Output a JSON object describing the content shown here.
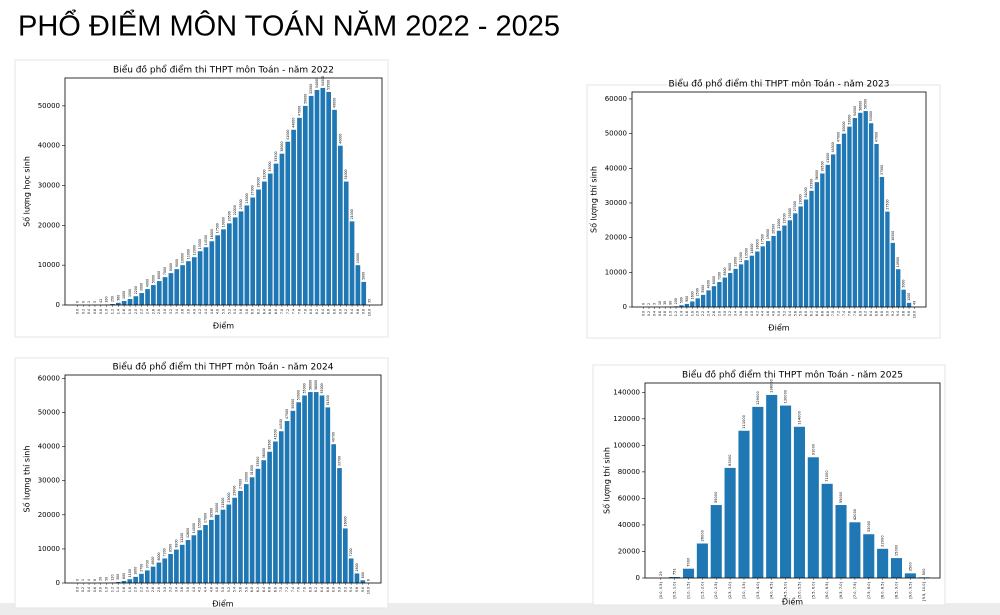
{
  "title": "PHỔ ĐIỂM MÔN TOÁN NĂM 2022 - 2025",
  "chart_data": [
    {
      "type": "bar",
      "title": "Biểu đồ phổ điểm thi THPT môn Toán - năm 2022",
      "xlabel": "Điểm",
      "ylabel": "Số lượng học sinh",
      "color": "#1f77b4",
      "categories": [
        "0.0",
        "0.2",
        "0.4",
        "0.6",
        "0.8",
        "1.0",
        "1.2",
        "1.4",
        "1.6",
        "1.8",
        "2.0",
        "2.2",
        "2.4",
        "2.6",
        "2.8",
        "3.0",
        "3.2",
        "3.4",
        "3.6",
        "3.8",
        "4.0",
        "4.2",
        "4.4",
        "4.6",
        "4.8",
        "5.0",
        "5.2",
        "5.4",
        "5.6",
        "5.8",
        "6.0",
        "6.2",
        "6.4",
        "6.6",
        "6.8",
        "7.0",
        "7.2",
        "7.4",
        "7.6",
        "7.8",
        "8.0",
        "8.2",
        "8.4",
        "8.6",
        "8.8",
        "9.0",
        "9.2",
        "9.4",
        "9.6",
        "9.8",
        "10.0"
      ],
      "values": [
        0,
        0,
        1,
        5,
        42,
        100,
        250,
        560,
        1000,
        1500,
        2200,
        3000,
        4000,
        5000,
        6000,
        7000,
        8000,
        9000,
        10000,
        11000,
        12000,
        13500,
        14500,
        16000,
        17500,
        19000,
        20500,
        22000,
        23500,
        25000,
        27000,
        29000,
        31000,
        33000,
        35500,
        38000,
        41000,
        44000,
        47000,
        50000,
        52500,
        54000,
        54500,
        53500,
        49000,
        40000,
        31000,
        21000,
        10000,
        5800,
        35
      ],
      "ylim": [
        0,
        57000
      ],
      "yticks": [
        0,
        10000,
        20000,
        30000,
        40000,
        50000
      ]
    },
    {
      "type": "bar",
      "title": "Biểu đồ phổ điểm thi THPT môn Toán - năm 2023",
      "xlabel": "Điểm",
      "ylabel": "Số lượng thí sinh",
      "color": "#1f77b4",
      "categories": [
        "0.0",
        "0.2",
        "0.4",
        "0.6",
        "0.8",
        "1.0",
        "1.2",
        "1.4",
        "1.6",
        "1.8",
        "2.0",
        "2.2",
        "2.4",
        "2.6",
        "2.8",
        "3.0",
        "3.2",
        "3.4",
        "3.6",
        "3.8",
        "4.0",
        "4.2",
        "4.4",
        "4.6",
        "4.8",
        "5.0",
        "5.2",
        "5.4",
        "5.6",
        "5.8",
        "6.0",
        "6.2",
        "6.4",
        "6.6",
        "6.8",
        "7.0",
        "7.2",
        "7.4",
        "7.6",
        "7.8",
        "8.0",
        "8.2",
        "8.4",
        "8.6",
        "8.8",
        "9.0",
        "9.2",
        "9.4",
        "9.6",
        "9.8",
        "10.0"
      ],
      "values": [
        0,
        2,
        3,
        10,
        30,
        80,
        200,
        500,
        900,
        1600,
        2500,
        3500,
        4800,
        6000,
        7200,
        8500,
        9800,
        11000,
        12300,
        13500,
        14800,
        16000,
        17500,
        19000,
        20500,
        22000,
        23500,
        25000,
        27000,
        29000,
        31000,
        33500,
        36000,
        38500,
        41000,
        44000,
        47000,
        50000,
        52000,
        54500,
        56000,
        56500,
        53000,
        47000,
        37500,
        27500,
        18500,
        10900,
        5000,
        1200,
        49
      ],
      "ylim": [
        0,
        62000
      ],
      "yticks": [
        0,
        10000,
        20000,
        30000,
        40000,
        50000,
        60000
      ]
    },
    {
      "type": "bar",
      "title": "Biểu đồ phổ điểm thi THPT môn Toán - năm 2024",
      "xlabel": "Điểm",
      "ylabel": "Số lượng thí sinh",
      "color": "#1f77b4",
      "categories": [
        "0.0",
        "0.2",
        "0.4",
        "0.6",
        "0.8",
        "1.0",
        "1.2",
        "1.4",
        "1.6",
        "1.8",
        "2.0",
        "2.2",
        "2.4",
        "2.6",
        "2.8",
        "3.0",
        "3.2",
        "3.4",
        "3.6",
        "3.8",
        "4.0",
        "4.2",
        "4.4",
        "4.6",
        "4.8",
        "5.0",
        "5.2",
        "5.4",
        "5.6",
        "5.8",
        "6.0",
        "6.2",
        "6.4",
        "6.6",
        "6.8",
        "7.0",
        "7.2",
        "7.4",
        "7.6",
        "7.8",
        "8.0",
        "8.2",
        "8.4",
        "8.6",
        "8.8",
        "9.0",
        "9.2",
        "9.4",
        "9.6",
        "9.8",
        "10.0"
      ],
      "values": [
        0,
        1,
        4,
        8,
        20,
        50,
        120,
        300,
        600,
        1100,
        1800,
        2700,
        3700,
        4800,
        6000,
        7200,
        8500,
        9800,
        11200,
        12600,
        14000,
        15500,
        17000,
        18500,
        20000,
        21500,
        23000,
        25000,
        27000,
        29000,
        31000,
        33500,
        36000,
        38500,
        41500,
        44500,
        47500,
        50500,
        53000,
        55000,
        56000,
        56000,
        55000,
        51500,
        40700,
        33700,
        16000,
        7200,
        2800,
        800,
        6
      ],
      "ylim": [
        0,
        61000
      ],
      "yticks": [
        0,
        10000,
        20000,
        30000,
        40000,
        50000,
        60000
      ]
    },
    {
      "type": "bar",
      "title": "Biểu đồ phổ điểm thi THPT môn Toán - năm 2025",
      "xlabel": "Điểm",
      "ylabel": "Số lượng thí sinh",
      "color": "#1f77b4",
      "categories": [
        "[0.0, 0.5)",
        "[0.5, 1.0)",
        "[1.0, 1.5)",
        "[1.5, 2.0)",
        "[2.0, 2.5)",
        "[2.5, 3.0)",
        "[3.0, 3.5)",
        "[3.5, 4.0)",
        "[4.0, 4.5)",
        "[4.5, 5.0)",
        "[5.0, 5.5)",
        "[5.5, 6.0)",
        "[6.0, 6.5)",
        "[6.5, 7.0)",
        "[7.0, 7.5)",
        "[7.5, 8.0)",
        "[8.0, 8.5)",
        "[8.5, 9.0)",
        "[9.0, 9.5)",
        "[9.5, 10.0]"
      ],
      "values": [
        29,
        751,
        7000,
        26000,
        55000,
        83000,
        111000,
        129000,
        138000,
        130000,
        114000,
        91000,
        71000,
        55000,
        42000,
        33000,
        22000,
        15000,
        3500,
        500
      ],
      "ylim": [
        0,
        147000
      ],
      "yticks": [
        0,
        20000,
        40000,
        60000,
        80000,
        100000,
        120000,
        140000
      ]
    }
  ]
}
